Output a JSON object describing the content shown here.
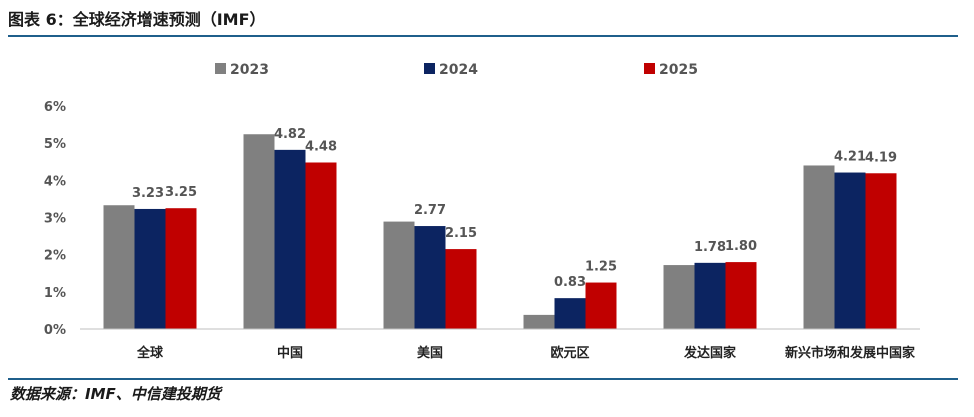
{
  "header": {
    "title": "图表 6：全球经济增速预测（IMF）"
  },
  "footer": {
    "source": "数据来源：IMF、中信建投期货"
  },
  "colors": {
    "rule": "#1f5f8b",
    "gridline": "#d9d9d9",
    "axis": "#bfbfbf"
  },
  "chart_data": {
    "type": "bar",
    "title": "",
    "xlabel": "",
    "ylabel": "",
    "categories": [
      "全球",
      "中国",
      "美国",
      "欧元区",
      "发达国家",
      "新兴市场和发展中国家"
    ],
    "ylim": [
      0,
      6
    ],
    "yticks": [
      "0%",
      "1%",
      "2%",
      "3%",
      "4%",
      "5%",
      "6%"
    ],
    "grid": false,
    "legend_position": "top",
    "series": [
      {
        "name": "2023",
        "color": "#808080",
        "values": [
          3.33,
          5.24,
          2.89,
          0.38,
          1.72,
          4.4
        ],
        "labels": [
          null,
          null,
          null,
          null,
          null,
          null
        ]
      },
      {
        "name": "2024",
        "color": "#0c2461",
        "values": [
          3.23,
          4.82,
          2.77,
          0.83,
          1.78,
          4.21
        ],
        "labels": [
          "3.23",
          "4.82",
          "2.77",
          "0.83",
          "1.78",
          "4.21"
        ]
      },
      {
        "name": "2025",
        "color": "#c00000",
        "values": [
          3.25,
          4.48,
          2.15,
          1.25,
          1.8,
          4.19
        ],
        "labels": [
          "3.25",
          "4.48",
          "2.15",
          "1.25",
          "1.80",
          "4.19"
        ]
      }
    ]
  }
}
